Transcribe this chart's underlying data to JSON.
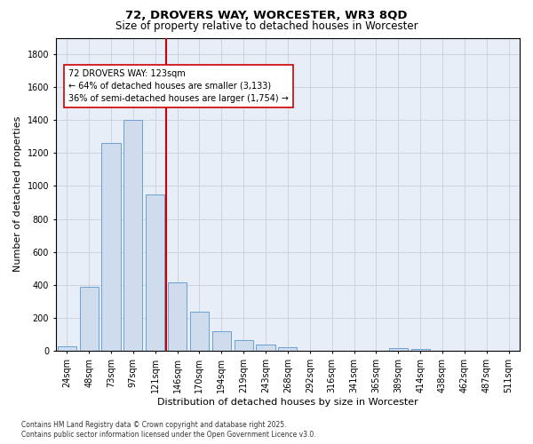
{
  "title_line1": "72, DROVERS WAY, WORCESTER, WR3 8QD",
  "title_line2": "Size of property relative to detached houses in Worcester",
  "xlabel": "Distribution of detached houses by size in Worcester",
  "ylabel": "Number of detached properties",
  "categories": [
    "24sqm",
    "48sqm",
    "73sqm",
    "97sqm",
    "121sqm",
    "146sqm",
    "170sqm",
    "194sqm",
    "219sqm",
    "243sqm",
    "268sqm",
    "292sqm",
    "316sqm",
    "341sqm",
    "365sqm",
    "389sqm",
    "414sqm",
    "438sqm",
    "462sqm",
    "487sqm",
    "511sqm"
  ],
  "values": [
    25,
    390,
    1260,
    1400,
    950,
    415,
    235,
    120,
    65,
    40,
    20,
    0,
    0,
    0,
    0,
    15,
    10,
    0,
    0,
    0,
    0
  ],
  "bar_color": "#cfdcee",
  "bar_edge_color": "#6b9fd4",
  "vline_index": 4.5,
  "vline_color": "#cc0000",
  "annotation_text": "72 DROVERS WAY: 123sqm\n← 64% of detached houses are smaller (3,133)\n36% of semi-detached houses are larger (1,754) →",
  "annotation_box_color": "#ffffff",
  "annotation_box_edge": "#cc0000",
  "ylim": [
    0,
    1900
  ],
  "yticks": [
    0,
    200,
    400,
    600,
    800,
    1000,
    1200,
    1400,
    1600,
    1800
  ],
  "grid_color": "#c8d0dc",
  "bg_color": "#e8eef8",
  "footer_text": "Contains HM Land Registry data © Crown copyright and database right 2025.\nContains public sector information licensed under the Open Government Licence v3.0.",
  "title_fontsize": 9.5,
  "subtitle_fontsize": 8.5,
  "axis_label_fontsize": 8,
  "tick_fontsize": 7,
  "annotation_fontsize": 7,
  "footer_fontsize": 5.5
}
